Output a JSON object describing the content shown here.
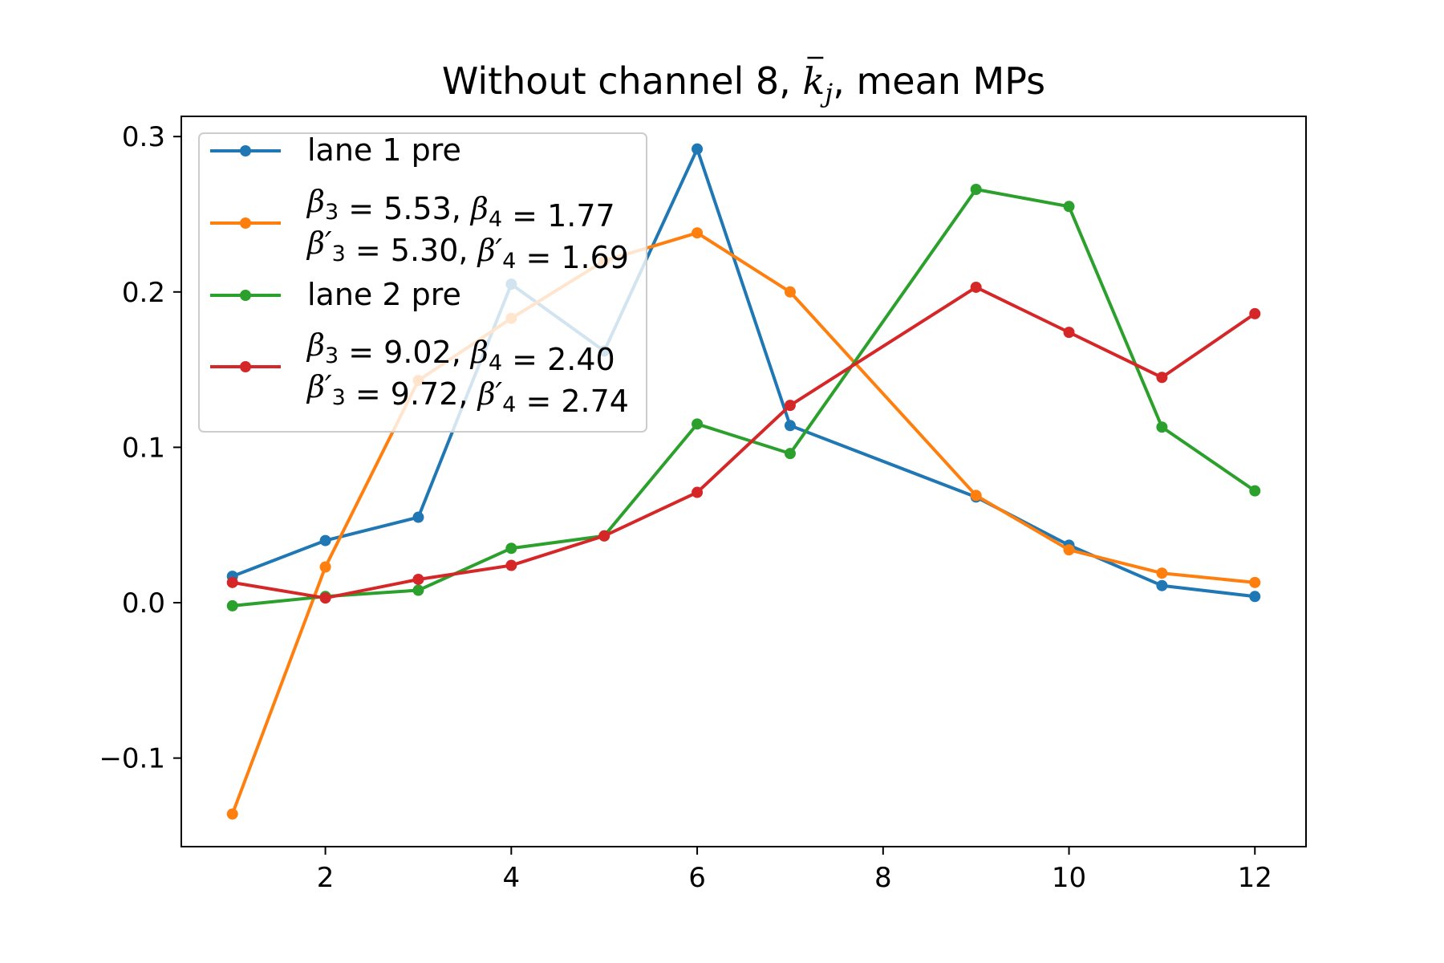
{
  "chart_data": {
    "type": "line",
    "title": "Without channel 8, k̄ⱼ, mean MPs",
    "title_parts": {
      "prefix": "Without channel 8, ",
      "math": "k",
      "subscript": "j",
      "suffix": ", mean MPs"
    },
    "xlabel": "",
    "ylabel": "",
    "xlim": [
      0.45,
      12.55
    ],
    "ylim": [
      -0.157,
      0.313
    ],
    "xticks": [
      2,
      4,
      6,
      8,
      10,
      12
    ],
    "yticks": [
      -0.1,
      0.0,
      0.1,
      0.2,
      0.3
    ],
    "xtick_labels": [
      "2",
      "4",
      "6",
      "8",
      "10",
      "12"
    ],
    "ytick_labels": [
      "−0.1",
      "0.0",
      "0.1",
      "0.2",
      "0.3"
    ],
    "grid": false,
    "legend_position": "upper-left",
    "x": [
      1,
      2,
      3,
      4,
      5,
      6,
      7,
      8,
      9,
      10,
      11,
      12
    ],
    "series": [
      {
        "name": "lane 1 pre",
        "legend_lines": [
          "lane 1 pre"
        ],
        "color": "#1f77b4",
        "values": [
          0.017,
          0.04,
          0.055,
          0.205,
          0.162,
          0.292,
          0.114,
          null,
          0.068,
          0.037,
          0.011,
          0.004
        ]
      },
      {
        "name": "β₃ = 5.53, β₄ = 1.77 / β′₃ = 5.30, β′₄ = 1.69",
        "legend_lines": [
          "β3 = 5.53, β4 = 1.77",
          "β′3 = 5.30, β′4 = 1.69"
        ],
        "color": "#ff7f0e",
        "values": [
          -0.136,
          0.023,
          0.143,
          0.183,
          0.22,
          0.238,
          0.2,
          null,
          0.069,
          0.034,
          0.019,
          0.013
        ]
      },
      {
        "name": "lane 2 pre",
        "legend_lines": [
          "lane 2 pre"
        ],
        "color": "#2ca02c",
        "values": [
          -0.002,
          0.004,
          0.008,
          0.035,
          0.043,
          0.115,
          0.096,
          null,
          0.266,
          0.255,
          0.113,
          0.072
        ]
      },
      {
        "name": "β₃ = 9.02, β₄ = 2.40 / β′₃ = 9.72, β′₄ = 2.74",
        "legend_lines": [
          "β3 = 9.02, β4 = 2.40",
          "β′3 = 9.72, β′4 = 2.74"
        ],
        "color": "#d62728",
        "values": [
          0.013,
          0.003,
          0.015,
          0.024,
          0.043,
          0.071,
          0.127,
          null,
          0.203,
          0.174,
          0.145,
          0.186
        ]
      }
    ]
  }
}
